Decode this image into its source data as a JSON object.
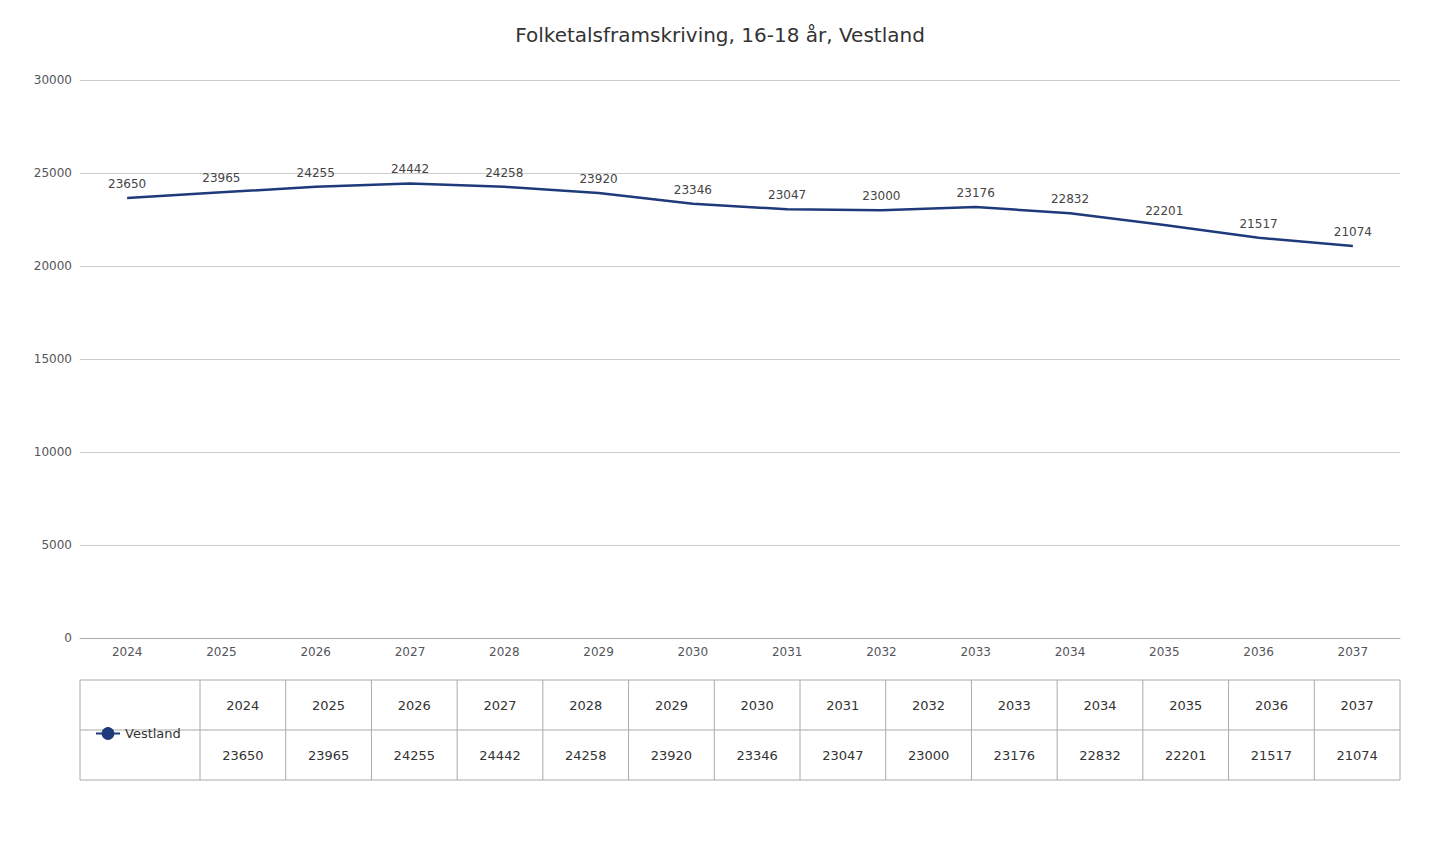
{
  "chart_data": {
    "type": "line",
    "title": "Folketalsframskriving, 16-18 år, Vestland",
    "categories": [
      2024,
      2025,
      2026,
      2027,
      2028,
      2029,
      2030,
      2031,
      2032,
      2033,
      2034,
      2035,
      2036,
      2037
    ],
    "series": [
      {
        "name": "Vestland",
        "color": "#1F3A7A",
        "values": [
          23650,
          23965,
          24255,
          24442,
          24258,
          23920,
          23346,
          23047,
          23000,
          23176,
          22832,
          22201,
          21517,
          21074
        ]
      }
    ],
    "ylim": [
      0,
      30000
    ],
    "yticks": [
      0,
      5000,
      10000,
      15000,
      20000,
      25000,
      30000
    ],
    "grid": true,
    "data_labels": true,
    "legend": "bottom-left"
  }
}
